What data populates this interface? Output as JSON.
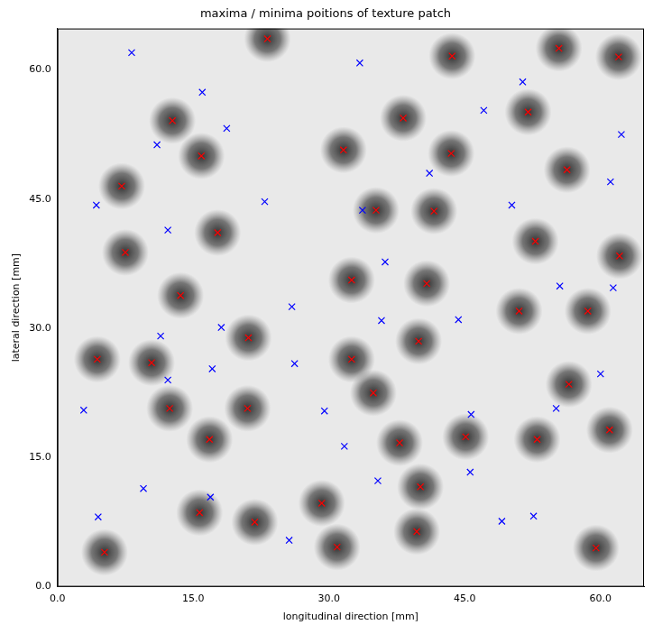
{
  "chart_data": {
    "type": "scatter",
    "title": "maxima / minima poitions of texture patch",
    "x_label": "longitudinal direction [mm]",
    "y_label": "lateral direction [mm]",
    "xlim": [
      0,
      64.8
    ],
    "ylim": [
      0,
      64.8
    ],
    "xticks": [
      {
        "value": 0,
        "label": "0.0"
      },
      {
        "value": 15,
        "label": "15.0"
      },
      {
        "value": 30,
        "label": "30.0"
      },
      {
        "value": 45,
        "label": "45.0"
      },
      {
        "value": 60,
        "label": "60.0"
      }
    ],
    "yticks": [
      {
        "value": 0,
        "label": "0.0"
      },
      {
        "value": 15,
        "label": "15.0"
      },
      {
        "value": 30,
        "label": "30.0"
      },
      {
        "value": 45,
        "label": "45.0"
      },
      {
        "value": 60,
        "label": "60.0"
      }
    ],
    "grid": false,
    "series": [
      {
        "color": "#ff0000",
        "marker": "x",
        "x": [
          5.2,
          15.7,
          21.8,
          29.2,
          30.9,
          39.7,
          40.1,
          59.5,
          37.8,
          45.1,
          53.0,
          61.0,
          16.8,
          12.4,
          21.0,
          34.9,
          56.5,
          4.4,
          10.4,
          32.5,
          39.9,
          21.1,
          51.0,
          58.6,
          13.6,
          32.5,
          40.8,
          62.1,
          7.5,
          17.7,
          52.8,
          35.2,
          41.6,
          7.1,
          56.3,
          15.9,
          31.6,
          43.5,
          12.7,
          38.2,
          52.0,
          43.6,
          23.2,
          55.4,
          62.0
        ],
        "y": [
          4.0,
          8.6,
          7.5,
          9.7,
          4.6,
          6.4,
          11.6,
          4.5,
          16.7,
          17.4,
          17.1,
          18.2,
          17.1,
          20.7,
          20.7,
          22.5,
          23.5,
          26.4,
          26.0,
          26.4,
          28.5,
          28.9,
          32.0,
          32.0,
          33.8,
          35.6,
          35.2,
          38.4,
          38.8,
          41.1,
          40.1,
          43.7,
          43.6,
          46.5,
          48.4,
          50.0,
          50.7,
          50.3,
          54.1,
          54.4,
          55.1,
          61.6,
          63.6,
          62.5,
          61.5
        ]
      },
      {
        "color": "#0000ff",
        "marker": "x",
        "x": [
          8.2,
          33.4,
          51.4,
          16.0,
          47.1,
          18.7,
          11.0,
          62.3,
          4.3,
          22.9,
          33.7,
          41.1,
          50.2,
          61.1,
          12.2,
          36.2,
          55.5,
          61.4,
          25.9,
          18.1,
          11.4,
          35.8,
          44.3,
          12.2,
          17.1,
          26.2,
          60.0,
          2.9,
          29.5,
          45.7,
          55.1,
          31.7,
          9.5,
          16.9,
          35.4,
          45.6,
          4.5,
          25.6,
          49.1,
          52.6
        ],
        "y": [
          62.0,
          60.8,
          58.6,
          57.4,
          55.3,
          53.2,
          51.3,
          52.5,
          44.3,
          44.7,
          43.7,
          48.0,
          44.3,
          47.0,
          41.4,
          37.7,
          34.9,
          34.7,
          32.5,
          30.1,
          29.1,
          30.9,
          31.0,
          24.0,
          25.3,
          25.9,
          24.7,
          20.5,
          20.4,
          20.0,
          20.7,
          16.3,
          11.4,
          10.4,
          12.3,
          13.3,
          8.1,
          5.4,
          7.6,
          8.2
        ]
      }
    ]
  }
}
